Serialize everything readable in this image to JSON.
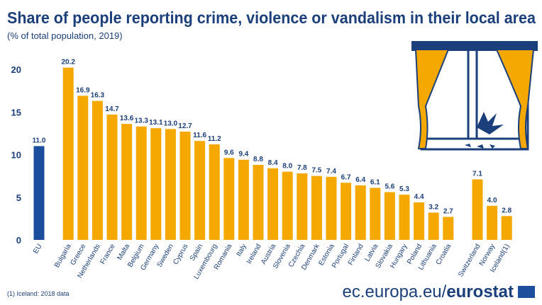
{
  "chart_data": {
    "type": "bar",
    "title": "Share of people reporting crime, violence or vandalism in their local area",
    "subtitle": "(% of total population, 2019)",
    "categories": [
      "EU",
      null,
      "Bulgaria",
      "Greece",
      "Netherlands",
      "France",
      "Malta",
      "Belgium",
      "Germany",
      "Sweden",
      "Cyprus",
      "Spain",
      "Luxembourg",
      "Romania",
      "Italy",
      "Ireland",
      "Austria",
      "Slovenia",
      "Czechia",
      "Denmark",
      "Estonia",
      "Portugal",
      "Finland",
      "Latvia",
      "Slovakia",
      "Hungary",
      "Poland",
      "Lithuania",
      "Croatia",
      null,
      "Switzerland",
      "Norway",
      "Iceland(1)"
    ],
    "values": [
      11.0,
      null,
      20.2,
      16.9,
      16.3,
      14.7,
      13.6,
      13.3,
      13.1,
      13.0,
      12.7,
      11.6,
      11.2,
      9.6,
      9.4,
      8.8,
      8.4,
      8.0,
      7.8,
      7.5,
      7.4,
      6.7,
      6.4,
      6.1,
      5.6,
      5.3,
      4.4,
      3.2,
      2.7,
      null,
      7.1,
      4.0,
      2.8
    ],
    "value_labels": [
      "11.0",
      null,
      "20.2",
      "16.9",
      "16.3",
      "14.7",
      "13.6",
      "13.3",
      "13.1",
      "13.0",
      "12.7",
      "11.6",
      "11.2",
      "9.6",
      "9.4",
      "8.8",
      "8.4",
      "8.0",
      "7.8",
      "7.5",
      "7.4",
      "6.7",
      "6.4",
      "6.1",
      "5.6",
      "5.3",
      "4.4",
      "3.2",
      "2.7",
      null,
      "7.1",
      "4.0",
      "2.8"
    ],
    "colors": [
      "#1d4e9e",
      null,
      "#f5a800",
      "#f5a800",
      "#f5a800",
      "#f5a800",
      "#f5a800",
      "#f5a800",
      "#f5a800",
      "#f5a800",
      "#f5a800",
      "#f5a800",
      "#f5a800",
      "#f5a800",
      "#f5a800",
      "#f5a800",
      "#f5a800",
      "#f5a800",
      "#f5a800",
      "#f5a800",
      "#f5a800",
      "#f5a800",
      "#f5a800",
      "#f5a800",
      "#f5a800",
      "#f5a800",
      "#f5a800",
      "#f5a800",
      "#f5a800",
      null,
      "#f5a800",
      "#f5a800",
      "#f5a800"
    ],
    "ylim": [
      0,
      21.5
    ],
    "yticks": [
      0,
      5,
      10,
      15,
      20
    ],
    "grid": false,
    "footnote": "(1) Iceland: 2018 data",
    "source_domain": "ec.europa.eu/",
    "source_brand": "eurostat"
  }
}
